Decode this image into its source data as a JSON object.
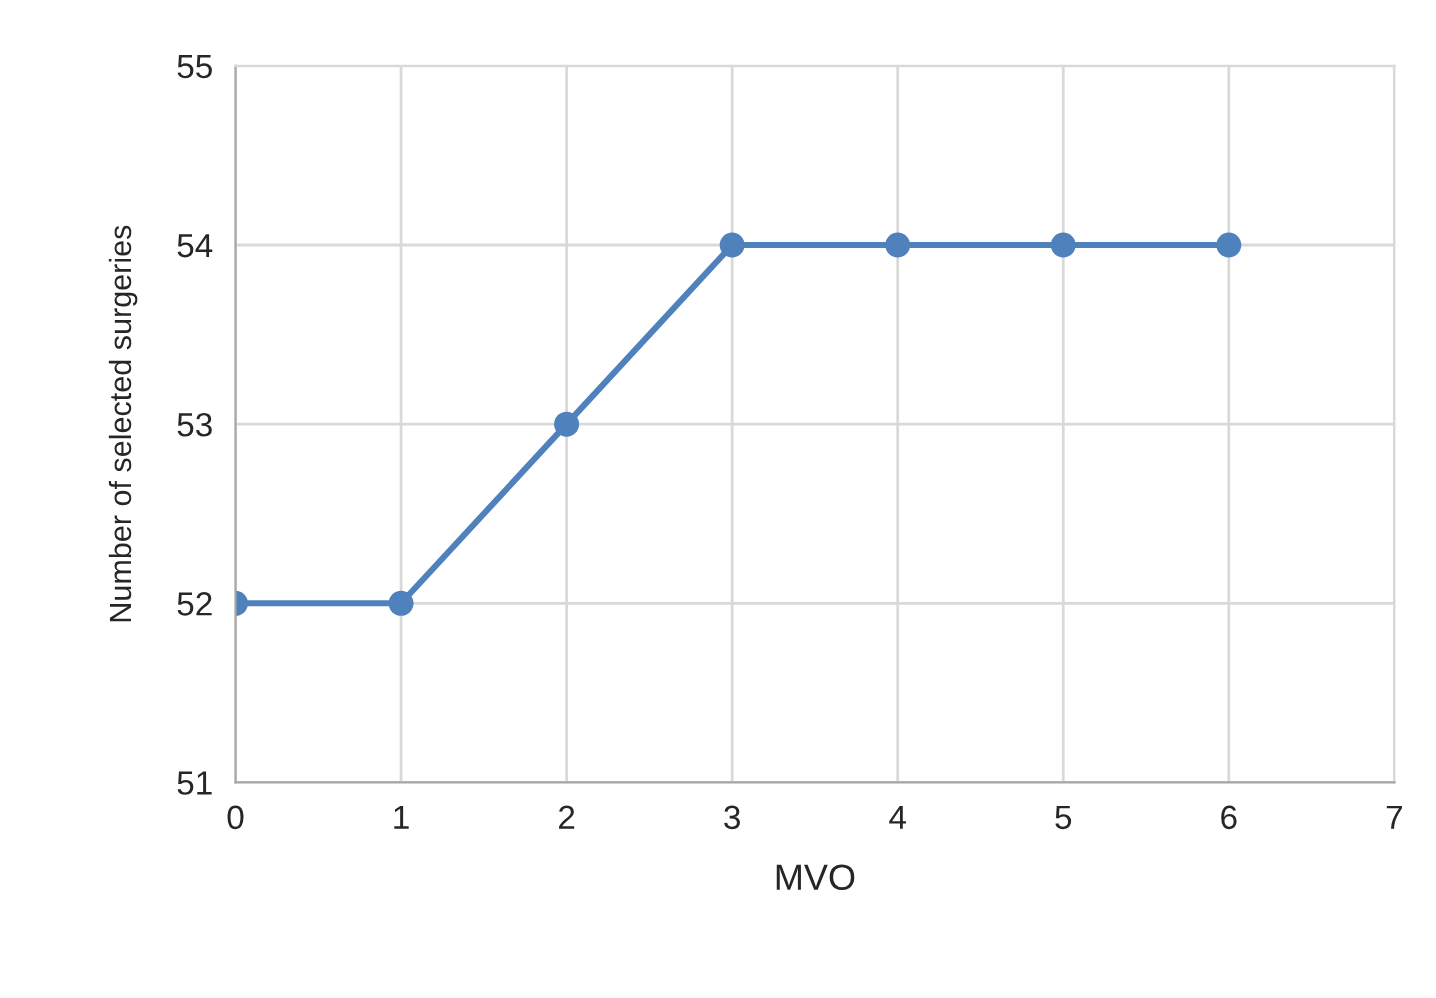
{
  "chart_data": {
    "type": "line",
    "xlabel": "MVO",
    "ylabel": "Number of selected surgeries",
    "x": [
      0,
      1,
      2,
      3,
      4,
      5,
      6
    ],
    "series": [
      {
        "color": "#4f81bd",
        "values": [
          52,
          52,
          53,
          54,
          54,
          54,
          54
        ]
      }
    ],
    "xlim": [
      0,
      7
    ],
    "xticks": [
      0,
      1,
      2,
      3,
      4,
      5,
      6,
      7
    ],
    "ylim": [
      51,
      55
    ],
    "yticks": [
      51,
      52,
      53,
      54,
      55
    ],
    "grid": true,
    "marker": "circle",
    "line_style": "solid",
    "legend": false
  }
}
